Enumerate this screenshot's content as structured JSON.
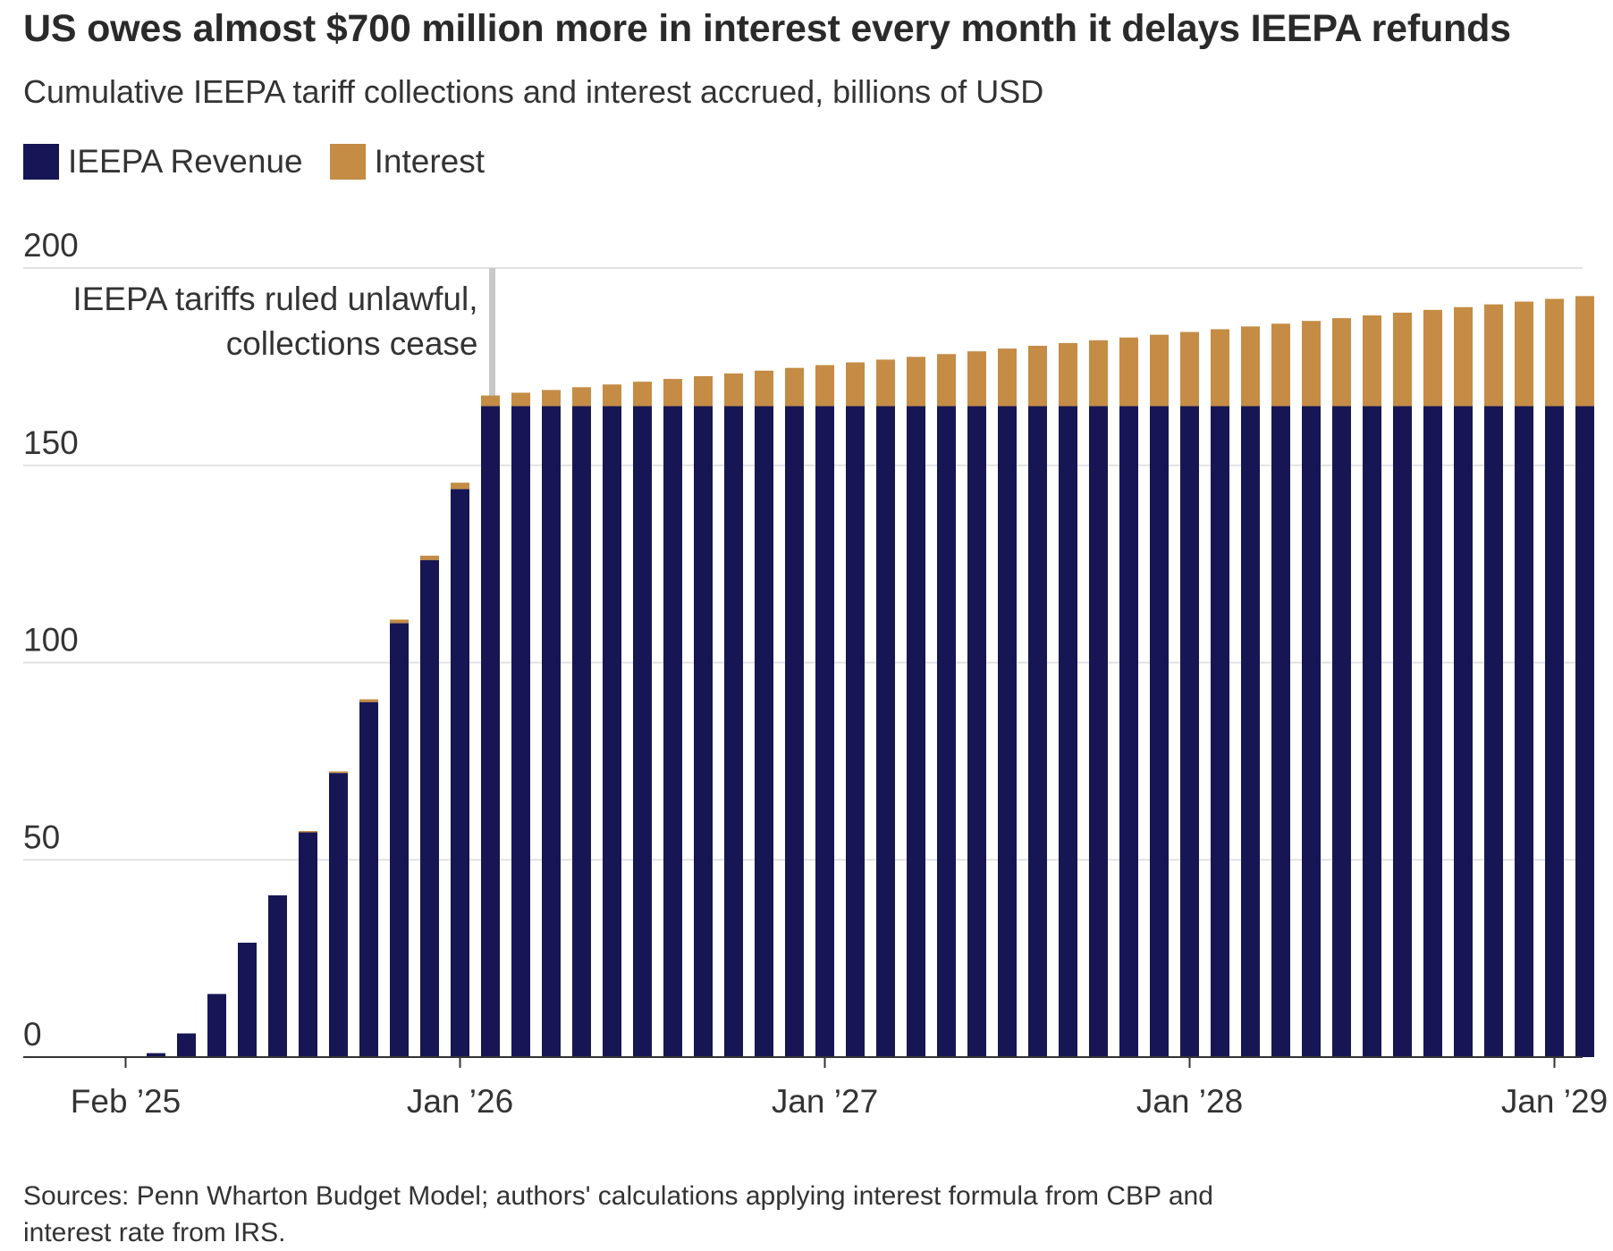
{
  "title": "US owes almost $700 million more in interest every month it delays IEEPA refunds",
  "subtitle": "Cumulative IEEPA tariff collections and interest accrued, billions of USD",
  "legend": {
    "revenue_label": "IEEPA Revenue",
    "interest_label": "Interest"
  },
  "colors": {
    "revenue": "#161654",
    "interest": "#c48c45",
    "grid": "#e2e2e2",
    "annotation_line": "#c8c8c8"
  },
  "annotation": {
    "line1": "IEEPA tariffs ruled unlawful,",
    "line2": "collections cease"
  },
  "source": {
    "line1": "Sources: Penn Wharton Budget Model; authors' calculations applying interest formula from CBP and",
    "line2": "interest rate from IRS."
  },
  "chart_data": {
    "type": "bar",
    "stacked": true,
    "ylim": [
      0,
      200
    ],
    "yticks": [
      0,
      50,
      100,
      150,
      200
    ],
    "x_tick_labels": [
      {
        "label": "Feb ’25",
        "index": 0
      },
      {
        "label": "Jan ’26",
        "index": 11
      },
      {
        "label": "Jan ’27",
        "index": 23
      },
      {
        "label": "Jan ’28",
        "index": 35
      },
      {
        "label": "Jan ’29",
        "index": 47
      }
    ],
    "annotation_index": 12.5,
    "categories": [
      "Feb '25",
      "Mar '25",
      "Apr '25",
      "May '25",
      "Jun '25",
      "Jul '25",
      "Aug '25",
      "Sep '25",
      "Oct '25",
      "Nov '25",
      "Dec '25",
      "Jan '26",
      "Feb '26",
      "Mar '26",
      "Apr '26",
      "May '26",
      "Jun '26",
      "Jul '26",
      "Aug '26",
      "Sep '26",
      "Oct '26",
      "Nov '26",
      "Dec '26",
      "Jan '27",
      "Feb '27",
      "Mar '27",
      "Apr '27",
      "May '27",
      "Jun '27",
      "Jul '27",
      "Aug '27",
      "Sep '27",
      "Oct '27",
      "Nov '27",
      "Dec '27",
      "Jan '28",
      "Feb '28",
      "Mar '28",
      "Apr '28",
      "May '28",
      "Jun '28",
      "Jul '28",
      "Aug '28",
      "Sep '28",
      "Oct '28",
      "Nov '28",
      "Dec '28",
      "Jan '29",
      "Feb '29"
    ],
    "series": [
      {
        "name": "IEEPA Revenue",
        "values": [
          0,
          1,
          6,
          16,
          29,
          41,
          57,
          72,
          90,
          110,
          126,
          144,
          165,
          165,
          165,
          165,
          165,
          165,
          165,
          165,
          165,
          165,
          165,
          165,
          165,
          165,
          165,
          165,
          165,
          165,
          165,
          165,
          165,
          165,
          165,
          165,
          165,
          165,
          165,
          165,
          165,
          165,
          165,
          165,
          165,
          165,
          165,
          165,
          165
        ]
      },
      {
        "name": "Interest",
        "values": [
          0,
          0,
          0,
          0,
          0,
          0,
          0.3,
          0.4,
          0.7,
          0.9,
          1.1,
          1.6,
          2.7,
          3.4,
          4.1,
          4.8,
          5.5,
          6.2,
          6.9,
          7.6,
          8.3,
          9.0,
          9.7,
          10.4,
          11.1,
          11.8,
          12.5,
          13.2,
          13.9,
          14.6,
          15.3,
          16.0,
          16.7,
          17.4,
          18.1,
          18.8,
          19.5,
          20.2,
          20.9,
          21.6,
          22.3,
          23.0,
          23.7,
          24.4,
          25.1,
          25.8,
          26.5,
          27.2,
          27.9
        ]
      }
    ]
  }
}
